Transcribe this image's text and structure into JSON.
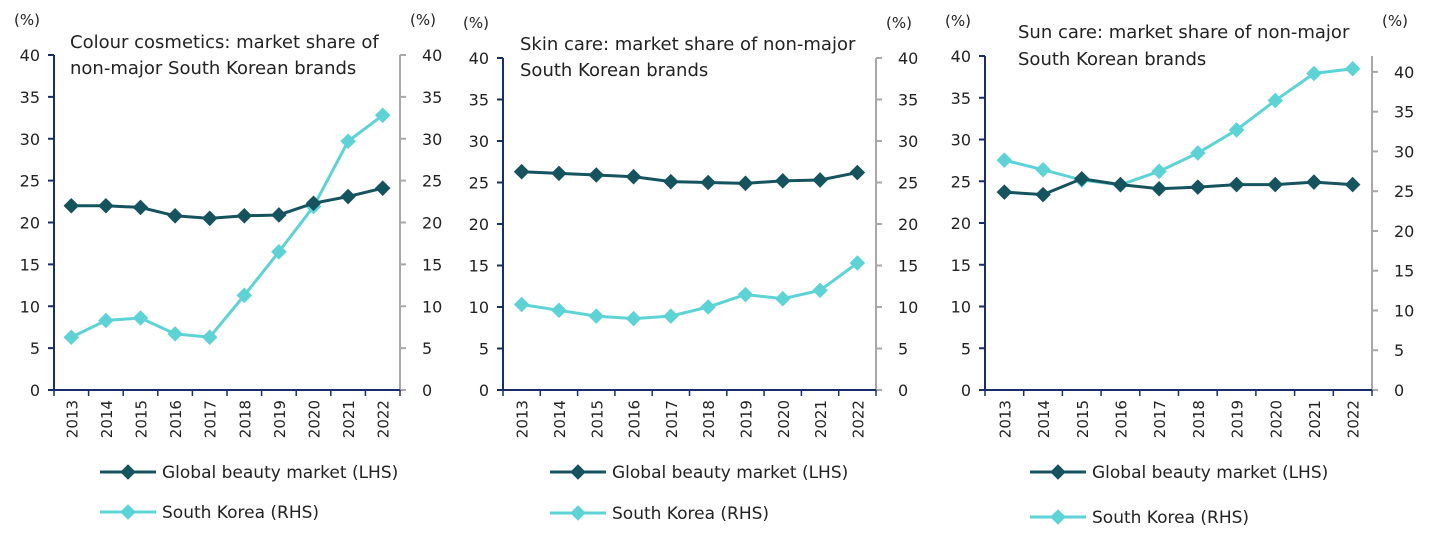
{
  "colors": {
    "global": "#15535e",
    "korea": "#5dd3d6",
    "lhs_axis": "#1a2d6b",
    "rhs_axis": "#a8a8a8"
  },
  "chart_data": [
    {
      "type": "line",
      "title_lines": [
        "Colour cosmetics: market share of",
        "non-major South Korean brands"
      ],
      "left_unit": "(%)",
      "right_unit": "(%)",
      "x": [
        "2013",
        "2014",
        "2015",
        "2016",
        "2017",
        "2018",
        "2019",
        "2020",
        "2021",
        "2022"
      ],
      "ylim_left": [
        0,
        40
      ],
      "ylim_right": [
        0,
        40
      ],
      "yticks_left": [
        "0",
        "5",
        "10",
        "15",
        "20",
        "25",
        "30",
        "35",
        "40"
      ],
      "yticks_right": [
        "0",
        "5",
        "10",
        "15",
        "20",
        "25",
        "30",
        "35",
        "40"
      ],
      "series": [
        {
          "name": "Global beauty market (LHS)",
          "axis": "left",
          "values": [
            22.0,
            22.0,
            21.8,
            20.8,
            20.5,
            20.8,
            20.9,
            22.3,
            23.1,
            24.1
          ]
        },
        {
          "name": "South Korea (RHS)",
          "axis": "right",
          "values": [
            6.3,
            8.3,
            8.6,
            6.7,
            6.3,
            11.3,
            16.5,
            21.9,
            29.7,
            32.8
          ]
        }
      ]
    },
    {
      "type": "line",
      "title_lines": [
        "Skin care: market share of non-major",
        "South Korean brands"
      ],
      "left_unit": "(%)",
      "right_unit": "(%)",
      "x": [
        "2013",
        "2014",
        "2015",
        "2016",
        "2017",
        "2018",
        "2019",
        "2020",
        "2021",
        "2022"
      ],
      "ylim_left": [
        0,
        40
      ],
      "ylim_right": [
        0,
        40
      ],
      "yticks_left": [
        "0",
        "5",
        "10",
        "15",
        "20",
        "25",
        "30",
        "35",
        "40"
      ],
      "yticks_right": [
        "0",
        "5",
        "10",
        "15",
        "20",
        "25",
        "30",
        "35",
        "40"
      ],
      "series": [
        {
          "name": "Global beauty market (LHS)",
          "axis": "left",
          "values": [
            26.3,
            26.1,
            25.9,
            25.7,
            25.1,
            25.0,
            24.9,
            25.2,
            25.3,
            26.2
          ]
        },
        {
          "name": "South Korea (RHS)",
          "axis": "right",
          "values": [
            10.3,
            9.6,
            8.9,
            8.6,
            8.9,
            10.0,
            11.5,
            11.0,
            12.0,
            15.3
          ]
        }
      ]
    },
    {
      "type": "line",
      "title_lines": [
        "Sun care: market share of non-major",
        "South Korean brands"
      ],
      "left_unit": "(%)",
      "right_unit": "(%)",
      "x": [
        "2013",
        "2014",
        "2015",
        "2016",
        "2017",
        "2018",
        "2019",
        "2020",
        "2021",
        "2022"
      ],
      "ylim_left": [
        0,
        40
      ],
      "ylim_right": [
        0,
        42
      ],
      "yticks_left": [
        "0",
        "5",
        "10",
        "15",
        "20",
        "25",
        "30",
        "35",
        "40"
      ],
      "yticks_right": [
        "0",
        "5",
        "10",
        "15",
        "20",
        "25",
        "30",
        "35",
        "40"
      ],
      "series": [
        {
          "name": "Global beauty market (LHS)",
          "axis": "left",
          "values": [
            23.7,
            23.4,
            25.3,
            24.6,
            24.1,
            24.3,
            24.6,
            24.6,
            24.9,
            24.6
          ]
        },
        {
          "name": "South Korea (RHS)",
          "axis": "right",
          "values": [
            28.9,
            27.7,
            26.4,
            25.8,
            27.5,
            29.8,
            32.7,
            36.4,
            39.8,
            40.4
          ]
        }
      ]
    }
  ]
}
